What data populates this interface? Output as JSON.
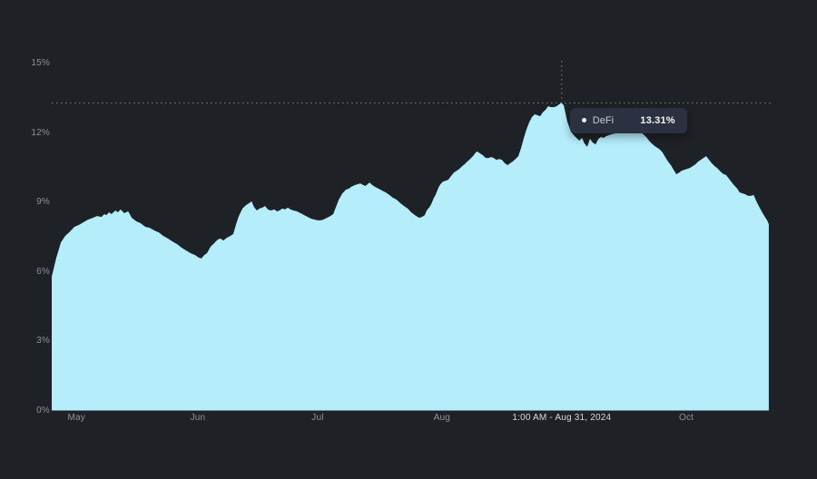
{
  "colors": {
    "background": "#1e2126",
    "area_fill": "#b5edfb",
    "y_axis_label": "#8e9199",
    "x_axis_label": "#90939b",
    "x_axis_label_highlight": "#d8dbe1",
    "crosshair_line": "#797d85",
    "tooltip_bg": "#2b3140",
    "tooltip_label": "#c9ccd5",
    "tooltip_value": "#f4f6f9",
    "tooltip_dot": "#eef0f4"
  },
  "tooltip": {
    "series_label": "DeFi",
    "value": "13.31%"
  },
  "chart_data": {
    "type": "area",
    "title": "",
    "xlabel": "",
    "ylabel": "",
    "grid": "off",
    "legend_position": "none",
    "x_unit": "days since series start (approx Apr 25, 2024)",
    "x_range_days": [
      0,
      180.5
    ],
    "y_range_pct": [
      0,
      15
    ],
    "y_ticks": [
      {
        "label": "0%",
        "value": 0
      },
      {
        "label": "3%",
        "value": 3
      },
      {
        "label": "6%",
        "value": 6
      },
      {
        "label": "9%",
        "value": 9
      },
      {
        "label": "12%",
        "value": 12
      },
      {
        "label": "15%",
        "value": 15
      }
    ],
    "x_ticks": [
      {
        "label": "May",
        "day": 6.2,
        "highlight": false
      },
      {
        "label": "Jun",
        "day": 36.7,
        "highlight": false
      },
      {
        "label": "Jul",
        "day": 66.8,
        "highlight": false
      },
      {
        "label": "Aug",
        "day": 98.0,
        "highlight": false
      },
      {
        "label": "1:00 AM - Aug 31, 2024",
        "day": 128.1,
        "highlight": true
      },
      {
        "label": "Oct",
        "day": 159.4,
        "highlight": false
      }
    ],
    "crosshair": {
      "day": 128.1,
      "value_pct": 13.31,
      "date_label": "1:00 AM - Aug 31, 2024"
    },
    "series": [
      {
        "name": "DeFi",
        "points": [
          [
            0,
            5.79
          ],
          [
            1.1,
            6.58
          ],
          [
            2.3,
            7.28
          ],
          [
            3.4,
            7.56
          ],
          [
            4.6,
            7.75
          ],
          [
            5.7,
            7.95
          ],
          [
            6.8,
            8.03
          ],
          [
            8,
            8.15
          ],
          [
            9.1,
            8.26
          ],
          [
            10.3,
            8.34
          ],
          [
            11.4,
            8.42
          ],
          [
            12.5,
            8.38
          ],
          [
            13.2,
            8.5
          ],
          [
            13.7,
            8.46
          ],
          [
            14.4,
            8.58
          ],
          [
            15,
            8.5
          ],
          [
            16,
            8.66
          ],
          [
            16.6,
            8.58
          ],
          [
            17.3,
            8.7
          ],
          [
            18.2,
            8.54
          ],
          [
            19.2,
            8.62
          ],
          [
            20.1,
            8.34
          ],
          [
            21.2,
            8.19
          ],
          [
            22.3,
            8.11
          ],
          [
            23.5,
            7.95
          ],
          [
            24.6,
            7.91
          ],
          [
            25.8,
            7.79
          ],
          [
            26.9,
            7.71
          ],
          [
            28,
            7.56
          ],
          [
            29.2,
            7.44
          ],
          [
            30.3,
            7.32
          ],
          [
            31.5,
            7.2
          ],
          [
            32.6,
            7.05
          ],
          [
            33.7,
            6.93
          ],
          [
            34.9,
            6.81
          ],
          [
            36,
            6.73
          ],
          [
            36.9,
            6.62
          ],
          [
            37.6,
            6.58
          ],
          [
            38.3,
            6.73
          ],
          [
            39,
            6.81
          ],
          [
            39.9,
            7.09
          ],
          [
            40.8,
            7.24
          ],
          [
            41.7,
            7.4
          ],
          [
            42.4,
            7.44
          ],
          [
            43.1,
            7.36
          ],
          [
            44,
            7.48
          ],
          [
            44.9,
            7.56
          ],
          [
            45.6,
            7.64
          ],
          [
            46.3,
            8.07
          ],
          [
            47,
            8.42
          ],
          [
            47.9,
            8.74
          ],
          [
            48.8,
            8.89
          ],
          [
            49.5,
            8.97
          ],
          [
            50.2,
            9.05
          ],
          [
            50.8,
            8.81
          ],
          [
            51.5,
            8.66
          ],
          [
            52.2,
            8.74
          ],
          [
            52.9,
            8.78
          ],
          [
            53.6,
            8.85
          ],
          [
            54.3,
            8.7
          ],
          [
            55,
            8.66
          ],
          [
            55.9,
            8.7
          ],
          [
            56.6,
            8.62
          ],
          [
            57.2,
            8.66
          ],
          [
            57.9,
            8.74
          ],
          [
            58.6,
            8.7
          ],
          [
            59.3,
            8.78
          ],
          [
            60,
            8.7
          ],
          [
            60.7,
            8.66
          ],
          [
            61.6,
            8.62
          ],
          [
            62.5,
            8.54
          ],
          [
            63.4,
            8.46
          ],
          [
            64.3,
            8.38
          ],
          [
            65.2,
            8.3
          ],
          [
            66.1,
            8.26
          ],
          [
            66.8,
            8.23
          ],
          [
            67.5,
            8.23
          ],
          [
            68.2,
            8.26
          ],
          [
            69.1,
            8.34
          ],
          [
            70,
            8.42
          ],
          [
            70.7,
            8.5
          ],
          [
            71.4,
            8.81
          ],
          [
            72.1,
            9.13
          ],
          [
            73,
            9.4
          ],
          [
            73.9,
            9.56
          ],
          [
            74.6,
            9.6
          ],
          [
            75.2,
            9.68
          ],
          [
            76.2,
            9.76
          ],
          [
            77.5,
            9.83
          ],
          [
            78.2,
            9.76
          ],
          [
            78.7,
            9.72
          ],
          [
            79.3,
            9.79
          ],
          [
            79.8,
            9.87
          ],
          [
            80.5,
            9.76
          ],
          [
            81.2,
            9.68
          ],
          [
            82.1,
            9.6
          ],
          [
            83,
            9.52
          ],
          [
            83.9,
            9.44
          ],
          [
            84.8,
            9.33
          ],
          [
            85.7,
            9.21
          ],
          [
            86.6,
            9.13
          ],
          [
            87.6,
            8.97
          ],
          [
            88.5,
            8.85
          ],
          [
            89.4,
            8.74
          ],
          [
            90.3,
            8.58
          ],
          [
            91.2,
            8.46
          ],
          [
            92.3,
            8.34
          ],
          [
            93,
            8.38
          ],
          [
            93.7,
            8.46
          ],
          [
            94.2,
            8.66
          ],
          [
            94.9,
            8.81
          ],
          [
            95.3,
            8.93
          ],
          [
            96,
            9.21
          ],
          [
            96.4,
            9.33
          ],
          [
            97.1,
            9.64
          ],
          [
            97.6,
            9.79
          ],
          [
            98.3,
            9.91
          ],
          [
            99,
            9.95
          ],
          [
            99.6,
            9.99
          ],
          [
            100.3,
            10.15
          ],
          [
            101,
            10.3
          ],
          [
            101.7,
            10.38
          ],
          [
            102.4,
            10.46
          ],
          [
            103.1,
            10.58
          ],
          [
            103.7,
            10.66
          ],
          [
            104.4,
            10.78
          ],
          [
            105.1,
            10.89
          ],
          [
            105.8,
            11.01
          ],
          [
            106.5,
            11.17
          ],
          [
            106.9,
            11.21
          ],
          [
            107.6,
            11.13
          ],
          [
            108.3,
            11.05
          ],
          [
            109,
            10.93
          ],
          [
            109.7,
            10.93
          ],
          [
            110.4,
            10.97
          ],
          [
            111,
            10.93
          ],
          [
            111.7,
            10.85
          ],
          [
            112.4,
            10.89
          ],
          [
            113.1,
            10.85
          ],
          [
            113.8,
            10.7
          ],
          [
            114.5,
            10.62
          ],
          [
            115.1,
            10.7
          ],
          [
            115.8,
            10.78
          ],
          [
            116.5,
            10.89
          ],
          [
            117.2,
            11.01
          ],
          [
            117.9,
            11.37
          ],
          [
            118.6,
            11.8
          ],
          [
            119.2,
            12.15
          ],
          [
            119.9,
            12.46
          ],
          [
            120.6,
            12.7
          ],
          [
            121.3,
            12.82
          ],
          [
            122,
            12.78
          ],
          [
            122.7,
            12.74
          ],
          [
            123.3,
            12.9
          ],
          [
            124,
            13.01
          ],
          [
            124.7,
            13.17
          ],
          [
            125.4,
            13.13
          ],
          [
            126.1,
            13.13
          ],
          [
            126.8,
            13.17
          ],
          [
            127.4,
            13.25
          ],
          [
            128.1,
            13.31
          ],
          [
            128.6,
            13.21
          ],
          [
            129.1,
            12.82
          ],
          [
            129.5,
            12.51
          ],
          [
            130,
            12.27
          ],
          [
            130.4,
            12.07
          ],
          [
            131.1,
            11.92
          ],
          [
            131.8,
            11.8
          ],
          [
            132.5,
            11.68
          ],
          [
            133.2,
            11.8
          ],
          [
            133.8,
            11.56
          ],
          [
            134.5,
            11.41
          ],
          [
            135.2,
            11.76
          ],
          [
            135.9,
            11.6
          ],
          [
            136.6,
            11.52
          ],
          [
            137.3,
            11.76
          ],
          [
            138,
            11.84
          ],
          [
            138.6,
            11.8
          ],
          [
            139.3,
            11.88
          ],
          [
            140,
            11.92
          ],
          [
            140.7,
            11.96
          ],
          [
            141.4,
            11.99
          ],
          [
            142,
            12.03
          ],
          [
            143,
            12.07
          ],
          [
            143.9,
            12.11
          ],
          [
            144.8,
            12.15
          ],
          [
            145.7,
            12.11
          ],
          [
            146.6,
            12.11
          ],
          [
            147.5,
            12.03
          ],
          [
            148.4,
            11.99
          ],
          [
            149.3,
            11.84
          ],
          [
            150,
            11.68
          ],
          [
            150.7,
            11.56
          ],
          [
            151.4,
            11.45
          ],
          [
            152.1,
            11.37
          ],
          [
            152.8,
            11.29
          ],
          [
            153.4,
            11.17
          ],
          [
            154.1,
            10.97
          ],
          [
            154.8,
            10.78
          ],
          [
            155.5,
            10.62
          ],
          [
            156.2,
            10.42
          ],
          [
            156.9,
            10.23
          ],
          [
            157.6,
            10.3
          ],
          [
            158.2,
            10.38
          ],
          [
            158.9,
            10.42
          ],
          [
            159.6,
            10.46
          ],
          [
            160.3,
            10.5
          ],
          [
            161,
            10.58
          ],
          [
            161.7,
            10.66
          ],
          [
            162.4,
            10.78
          ],
          [
            163,
            10.85
          ],
          [
            163.7,
            10.93
          ],
          [
            164.4,
            11.01
          ],
          [
            165.1,
            10.85
          ],
          [
            165.8,
            10.7
          ],
          [
            166.5,
            10.58
          ],
          [
            167.1,
            10.5
          ],
          [
            167.8,
            10.38
          ],
          [
            168.5,
            10.26
          ],
          [
            169.4,
            10.19
          ],
          [
            170.3,
            9.99
          ],
          [
            171.2,
            9.79
          ],
          [
            172.2,
            9.6
          ],
          [
            172.8,
            9.44
          ],
          [
            173.5,
            9.4
          ],
          [
            174.2,
            9.36
          ],
          [
            174.9,
            9.29
          ],
          [
            175.6,
            9.29
          ],
          [
            176.3,
            9.33
          ],
          [
            177,
            9.05
          ],
          [
            177.6,
            8.85
          ],
          [
            178.3,
            8.62
          ],
          [
            179,
            8.42
          ],
          [
            179.7,
            8.23
          ],
          [
            180.1,
            8.07
          ]
        ]
      }
    ]
  }
}
